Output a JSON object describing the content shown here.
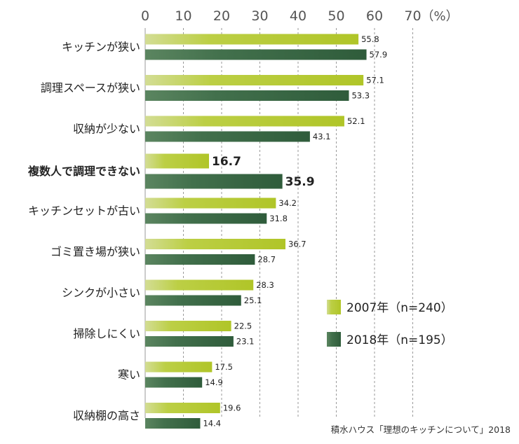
{
  "chart_data": {
    "type": "bar",
    "orientation": "horizontal",
    "unit": "（%）",
    "xlim": [
      0,
      70
    ],
    "ticks": [
      0,
      10,
      20,
      30,
      40,
      50,
      60,
      70
    ],
    "grid": "vertical dashed",
    "categories": [
      "キッチンが狭い",
      "調理スペースが狭い",
      "収納が少ない",
      "複数人で調理できない",
      "キッチンセットが古い",
      "ゴミ置き場が狭い",
      "シンクが小さい",
      "掃除しにくい",
      "寒い",
      "収納棚の高さ"
    ],
    "highlight_index": 3,
    "series": [
      {
        "name": "2007年（n=240）",
        "color": "#b5c93a",
        "values": [
          55.8,
          57.1,
          52.1,
          16.7,
          34.2,
          36.7,
          28.3,
          22.5,
          17.5,
          19.6
        ]
      },
      {
        "name": "2018年（n=195）",
        "color": "#3f6b47",
        "values": [
          57.9,
          53.3,
          43.1,
          35.9,
          31.8,
          28.7,
          25.1,
          23.1,
          14.9,
          14.4
        ]
      }
    ],
    "value_labels": [
      [
        "55.8",
        "57.1",
        "52.1",
        "16.7",
        "34.2",
        "36.7",
        "28.3",
        "22.5",
        "17.5",
        "19.6"
      ],
      [
        "57.9",
        "53.3",
        "43.1",
        "35.9",
        "31.8",
        "28.7",
        "25.1",
        "23.1",
        "14.9",
        "14.4"
      ]
    ],
    "legend_position": "right"
  },
  "source": "積水ハウス「理想のキッチンについて」2018"
}
